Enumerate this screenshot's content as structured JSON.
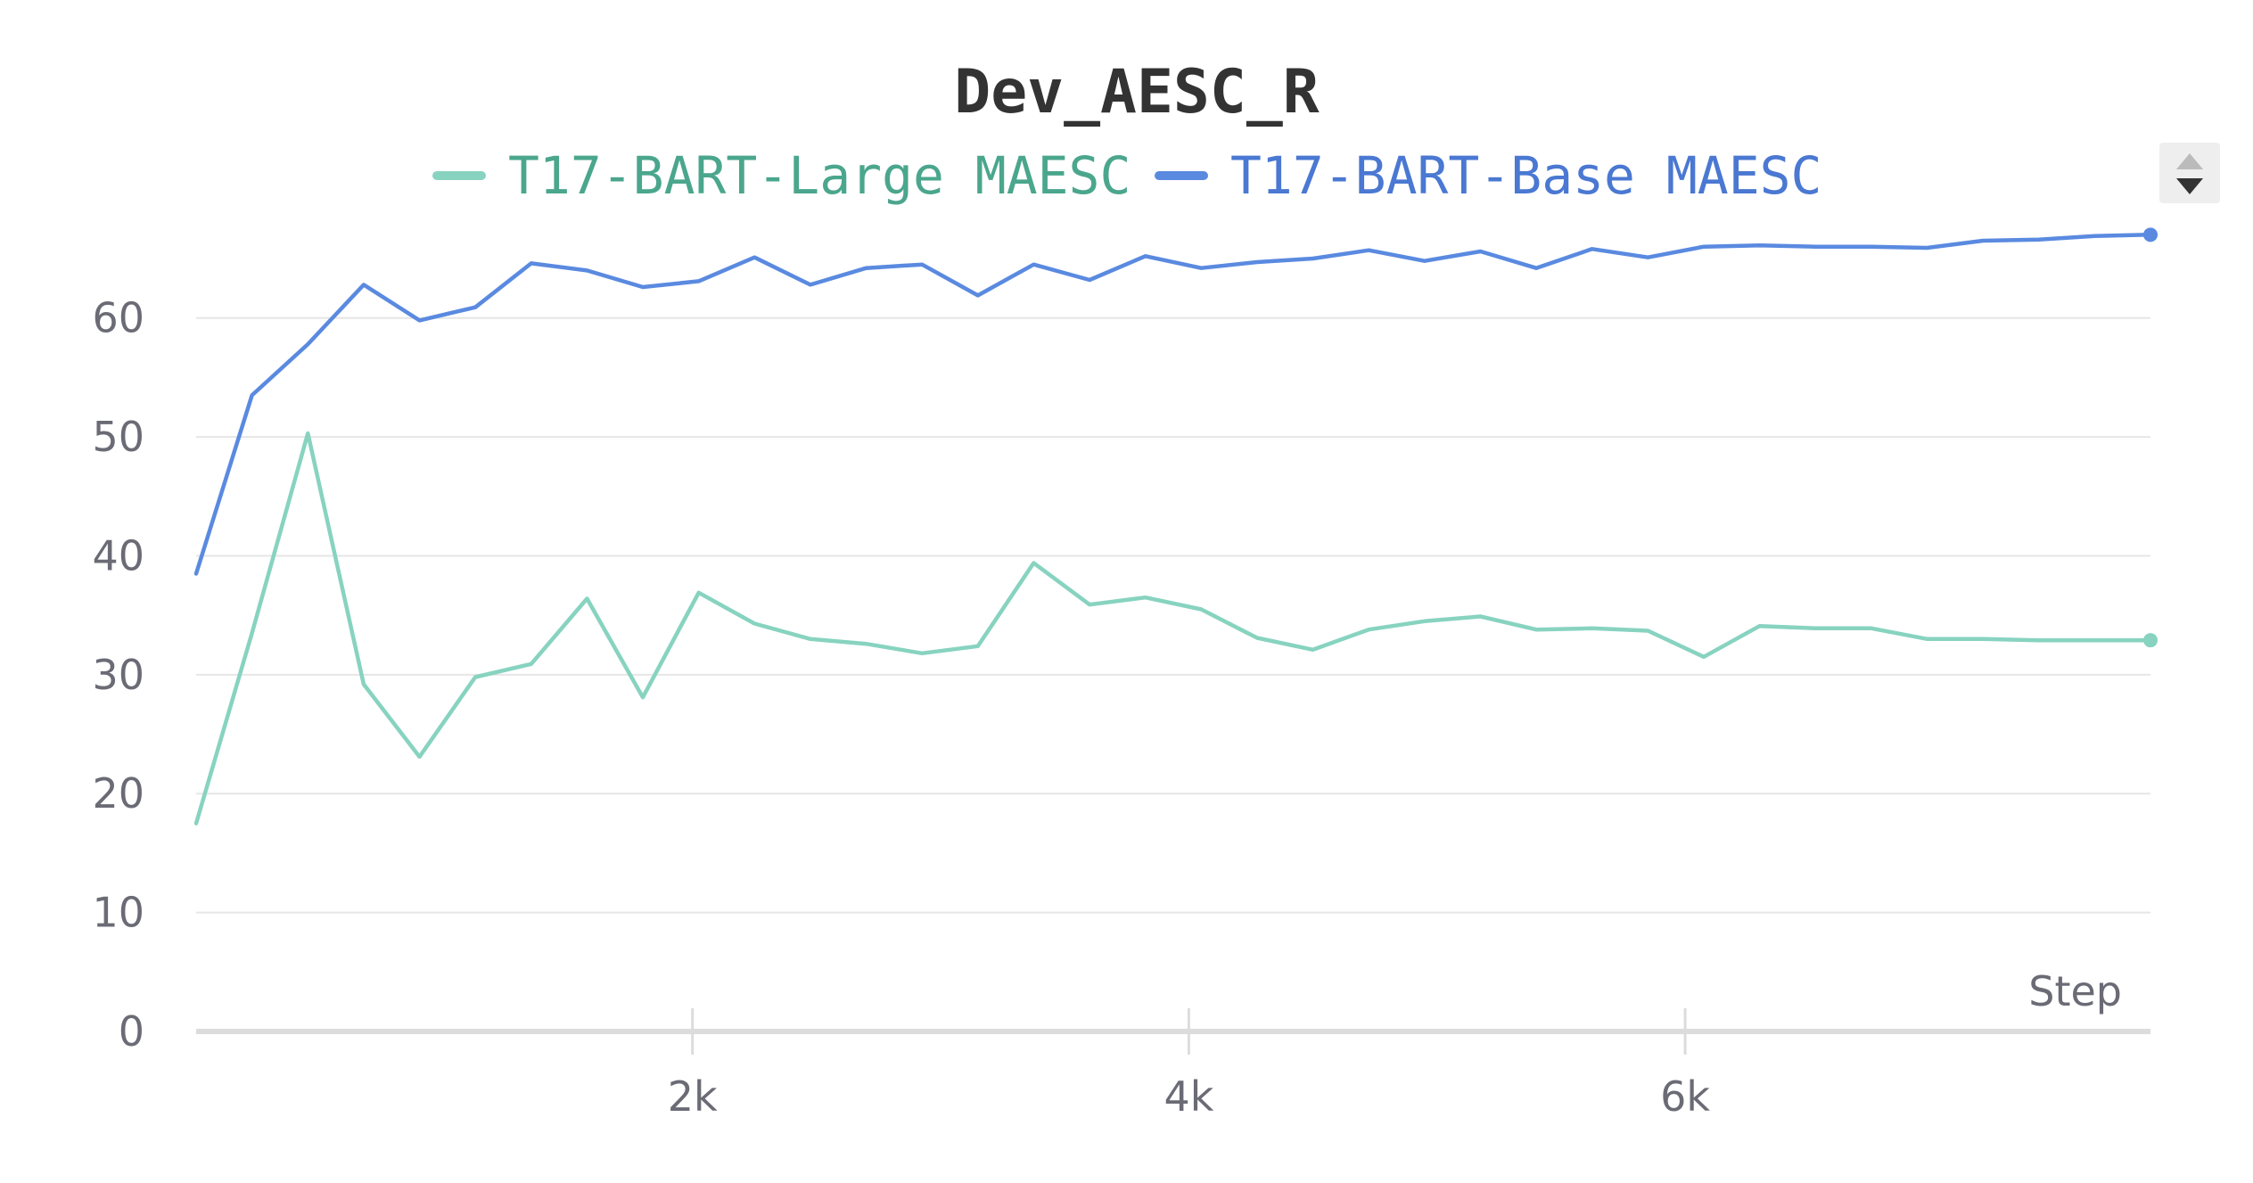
{
  "chart_data": {
    "type": "line",
    "title": "Dev_AESC_R",
    "xlabel": "Step",
    "ylabel": "",
    "xlim": [
      0,
      7700
    ],
    "ylim": [
      0,
      68
    ],
    "y_ticks": [
      0,
      10,
      20,
      30,
      40,
      50,
      60
    ],
    "x_ticks": [
      2000,
      4000,
      6000
    ],
    "x_tick_labels": [
      "2k",
      "4k",
      "6k"
    ],
    "y_tick_labels": [
      "0",
      "10",
      "20",
      "30",
      "40",
      "50",
      "60"
    ],
    "grid": true,
    "legend_position": "top",
    "x": [
      0,
      225,
      450,
      675,
      900,
      1125,
      1350,
      1575,
      1800,
      2025,
      2250,
      2475,
      2700,
      2925,
      3150,
      3375,
      3600,
      3825,
      4050,
      4275,
      4500,
      4725,
      4950,
      5175,
      5400,
      5625,
      5850,
      6075,
      6300,
      6525,
      6750,
      6975,
      7200,
      7425,
      7650,
      7875
    ],
    "series": [
      {
        "name": "T17-BART-Large MAESC",
        "color": "#87d3c0",
        "legend_text_color": "#4aa68c",
        "values": [
          17.5,
          33.5,
          50.3,
          29.2,
          23.1,
          29.8,
          30.9,
          36.4,
          28.1,
          36.9,
          34.3,
          33.0,
          32.6,
          31.8,
          32.4,
          39.4,
          35.9,
          36.5,
          35.5,
          33.1,
          32.1,
          33.8,
          34.5,
          34.9,
          33.8,
          33.9,
          33.7,
          31.5,
          34.1,
          33.9,
          33.9,
          33.0,
          33.0,
          32.9,
          32.9,
          32.9
        ]
      },
      {
        "name": "T17-BART-Base MAESC",
        "color": "#5a8ae0",
        "legend_text_color": "#4a78d2",
        "values": [
          38.5,
          53.5,
          57.8,
          62.8,
          59.8,
          60.9,
          64.6,
          64.0,
          62.6,
          63.1,
          65.1,
          62.8,
          64.2,
          64.5,
          61.9,
          64.5,
          63.2,
          65.2,
          64.2,
          64.7,
          65.0,
          65.7,
          64.8,
          65.6,
          64.2,
          65.8,
          65.1,
          66.0,
          66.1,
          66.0,
          66.0,
          65.9,
          66.5,
          66.6,
          66.9,
          67.0
        ]
      }
    ]
  },
  "legend_control": {
    "up_icon": "triangle-up-icon",
    "down_icon": "triangle-down-icon"
  }
}
